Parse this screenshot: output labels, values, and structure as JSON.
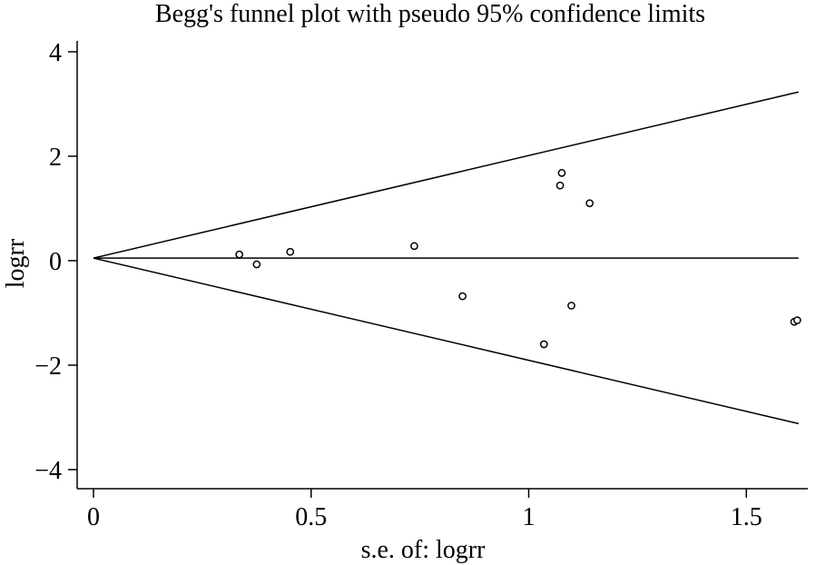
{
  "chart_data": {
    "type": "scatter",
    "title": "Begg's funnel plot with pseudo 95% confidence limits",
    "xlabel": "s.e. of: logrr",
    "ylabel": "logrr",
    "xlim": [
      0,
      1.62
    ],
    "ylim": [
      -4,
      4
    ],
    "x_ticks": [
      {
        "value": 0,
        "label": "0"
      },
      {
        "value": 0.5,
        "label": "0.5"
      },
      {
        "value": 1,
        "label": "1"
      },
      {
        "value": 1.5,
        "label": "1.5"
      }
    ],
    "y_ticks": [
      {
        "value": 4,
        "label": "4"
      },
      {
        "value": 2,
        "label": "2"
      },
      {
        "value": 0,
        "label": "0"
      },
      {
        "value": -2,
        "label": "−2"
      },
      {
        "value": -4,
        "label": "−4"
      }
    ],
    "pooled_estimate": 0.05,
    "confidence_limits": {
      "upper": [
        [
          0,
          0.05
        ],
        [
          1.62,
          3.23
        ]
      ],
      "lower": [
        [
          0,
          0.05
        ],
        [
          1.62,
          -3.12
        ]
      ]
    },
    "points": [
      {
        "x": 0.335,
        "y": 0.12
      },
      {
        "x": 0.375,
        "y": -0.07
      },
      {
        "x": 0.452,
        "y": 0.17
      },
      {
        "x": 0.737,
        "y": 0.28
      },
      {
        "x": 0.848,
        "y": -0.68
      },
      {
        "x": 1.035,
        "y": -1.6
      },
      {
        "x": 1.072,
        "y": 1.44
      },
      {
        "x": 1.076,
        "y": 1.68
      },
      {
        "x": 1.098,
        "y": -0.86
      },
      {
        "x": 1.14,
        "y": 1.1
      },
      {
        "x": 1.61,
        "y": -1.17
      },
      {
        "x": 1.617,
        "y": -1.14
      }
    ],
    "grid": false,
    "legend": "none"
  }
}
